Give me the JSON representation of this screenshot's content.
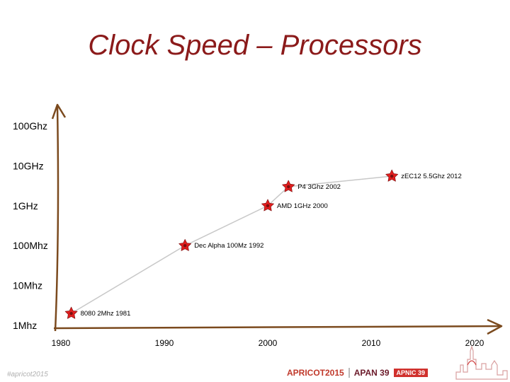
{
  "title": "Clock Speed – Processors",
  "chart_data": {
    "type": "line",
    "title": "Clock Speed – Processors",
    "y_scale": "log",
    "yticks": [
      "100Ghz",
      "10GHz",
      "1GHz",
      "100Mhz",
      "10Mhz",
      "1Mhz"
    ],
    "y_tick_values_mhz": [
      100000,
      10000,
      1000,
      100,
      10,
      1
    ],
    "xticks": [
      "1980",
      "1990",
      "2000",
      "2010",
      "2020"
    ],
    "x_tick_values": [
      1980,
      1990,
      2000,
      2010,
      2020
    ],
    "xlim": [
      1980,
      2020
    ],
    "ylim_mhz": [
      1,
      100000
    ],
    "series": [
      {
        "points": [
          {
            "x": 1981,
            "y_mhz": 2,
            "label": "8080 2Mhz 1981"
          },
          {
            "x": 1992,
            "y_mhz": 100,
            "label": "Dec Alpha 100Mz 1992"
          },
          {
            "x": 2000,
            "y_mhz": 1000,
            "label": "AMD 1GHz 2000"
          },
          {
            "x": 2002,
            "y_mhz": 3000,
            "label": "P4 3Ghz 2002"
          },
          {
            "x": 2012,
            "y_mhz": 5500,
            "label": "zEC12 5.5Ghz 2012"
          }
        ]
      }
    ],
    "colors": {
      "axis": "#7b4a1e",
      "line": "#c8c8c8",
      "marker": "#e01e1e",
      "marker_center": "#7a1010",
      "title": "#8b1a1a"
    }
  },
  "footer": {
    "left_text": "#apricot2015",
    "logo_apricot": "APRICOT2015",
    "logo_apan": "APAN 39",
    "logo_apnic": "APNIC 39"
  }
}
